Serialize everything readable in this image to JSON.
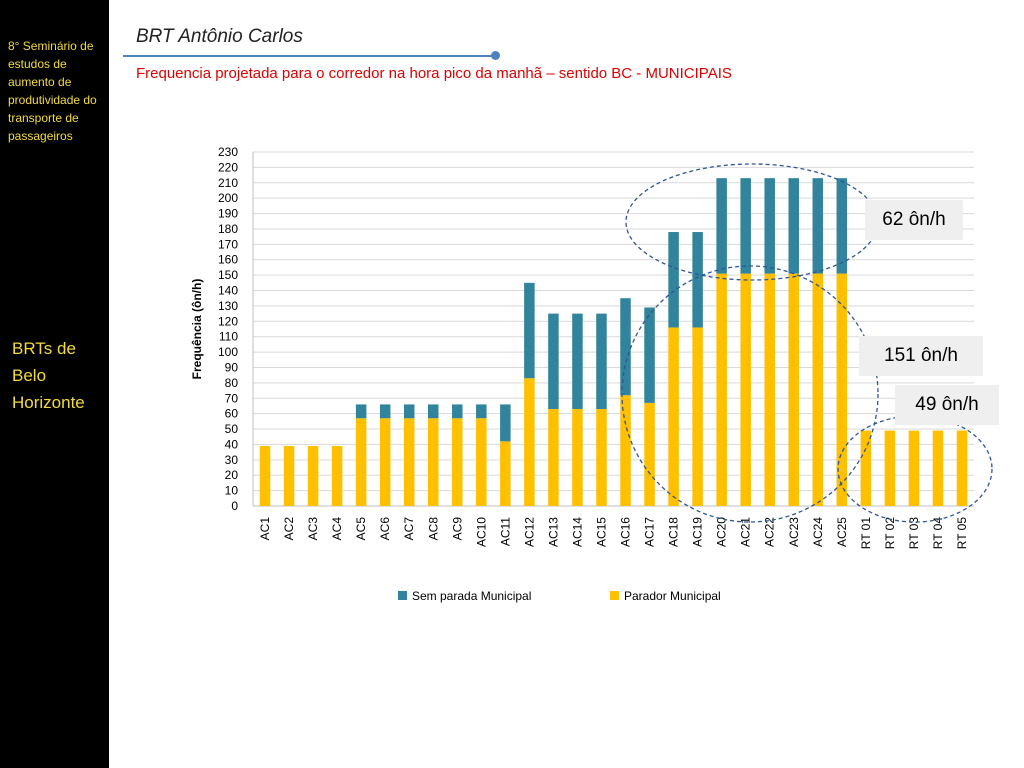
{
  "sidebar": {
    "seminar": "8° Seminário de estudos de aumento de produtividade do transporte de passageiros",
    "brts": "BRTs de Belo Horizonte"
  },
  "header": {
    "title": "BRT Antônio Carlos",
    "subtitle": "Frequencia projetada para o corredor na hora pico da manhã – sentido BC - MUNICIPAIS"
  },
  "callouts": {
    "top": "62 ôn/h",
    "middle": "151 ôn/h",
    "bottom": "49 ôn/h"
  },
  "colors": {
    "sem_parada": "#31849b",
    "parador": "#ffc000",
    "grid": "#d9d9d9",
    "ellipse": "#2f5597"
  },
  "chart_data": {
    "type": "bar",
    "stacked": true,
    "title": "",
    "xlabel": "",
    "ylabel": "Frequência (ôn/h)",
    "ylim": [
      0,
      230
    ],
    "ytick_step": 10,
    "grid": true,
    "legend_position": "bottom",
    "categories": [
      "AC1",
      "AC2",
      "AC3",
      "AC4",
      "AC5",
      "AC6",
      "AC7",
      "AC8",
      "AC9",
      "AC10",
      "AC11",
      "AC12",
      "AC13",
      "AC14",
      "AC15",
      "AC16",
      "AC17",
      "AC18",
      "AC19",
      "AC20",
      "AC21",
      "AC22",
      "AC23",
      "AC24",
      "AC25",
      "RT 01",
      "RT 02",
      "RT 03",
      "RT 04",
      "RT 05"
    ],
    "series": [
      {
        "name": "Parador Municipal",
        "values": [
          39,
          39,
          39,
          39,
          57,
          57,
          57,
          57,
          57,
          57,
          42,
          83,
          63,
          63,
          63,
          72,
          67,
          116,
          116,
          151,
          151,
          151,
          151,
          151,
          151,
          49,
          49,
          49,
          49,
          49
        ]
      },
      {
        "name": "Sem parada Municipal",
        "values": [
          0,
          0,
          0,
          0,
          9,
          9,
          9,
          9,
          9,
          9,
          24,
          62,
          62,
          62,
          62,
          63,
          62,
          62,
          62,
          62,
          62,
          62,
          62,
          62,
          62,
          0,
          0,
          0,
          0,
          0
        ]
      }
    ]
  }
}
